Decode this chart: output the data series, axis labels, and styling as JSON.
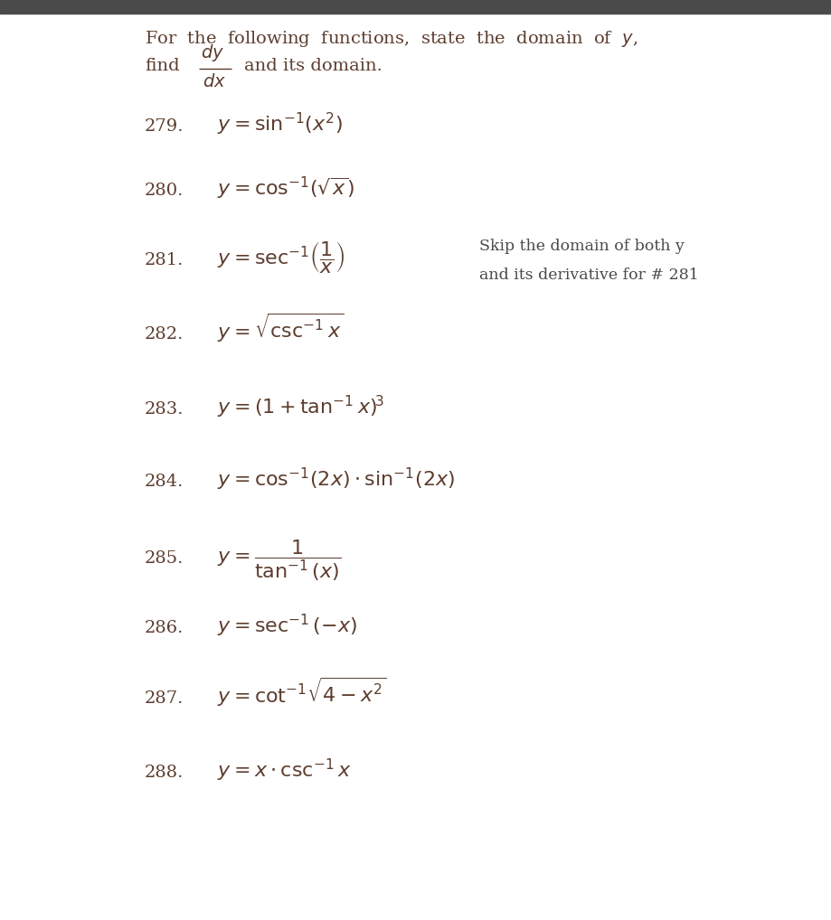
{
  "bg_color": "#ffffff",
  "top_bar_color": "#4a4a4a",
  "text_color": "#5c3d2e",
  "note_color": "#4a4a4a",
  "figsize": [
    9.19,
    10.18
  ],
  "dpi": 100,
  "header_fontsize": 14.0,
  "math_fontsize": 16.0,
  "num_fontsize": 14.0,
  "note_fontsize": 12.5,
  "items": [
    {
      "num": "279.",
      "latex": "$y = \\sin^{-1}\\!\\left(x^2\\right)$",
      "note": false
    },
    {
      "num": "280.",
      "latex": "$y = \\cos^{-1}\\!\\left(\\sqrt{x}\\right)$",
      "note": false
    },
    {
      "num": "281.",
      "latex": "$y = \\sec^{-1}\\!\\left(\\dfrac{1}{x}\\right)$",
      "note": true
    },
    {
      "num": "282.",
      "latex": "$y = \\sqrt{\\csc^{-1} x}$",
      "note": false
    },
    {
      "num": "283.",
      "latex": "$y = \\left(1 + \\tan^{-1} x\\right)^{\\!3}$",
      "note": false
    },
    {
      "num": "284.",
      "latex": "$y = \\cos^{-1}\\!(2x) \\cdot \\sin^{-1}\\!(2x)$",
      "note": false
    },
    {
      "num": "285.",
      "latex": "$y = \\dfrac{1}{\\tan^{-1}(x)}$",
      "note": false
    },
    {
      "num": "286.",
      "latex": "$y = \\sec^{-1}(-x)$",
      "note": false
    },
    {
      "num": "287.",
      "latex": "$y = \\cot^{-1}\\!\\sqrt{4 - x^2}$",
      "note": false
    },
    {
      "num": "288.",
      "latex": "$y = x \\cdot \\csc^{-1} x$",
      "note": false
    }
  ],
  "note_line1": "Skip the domain of both y",
  "note_line2": "and its derivative for # 281"
}
